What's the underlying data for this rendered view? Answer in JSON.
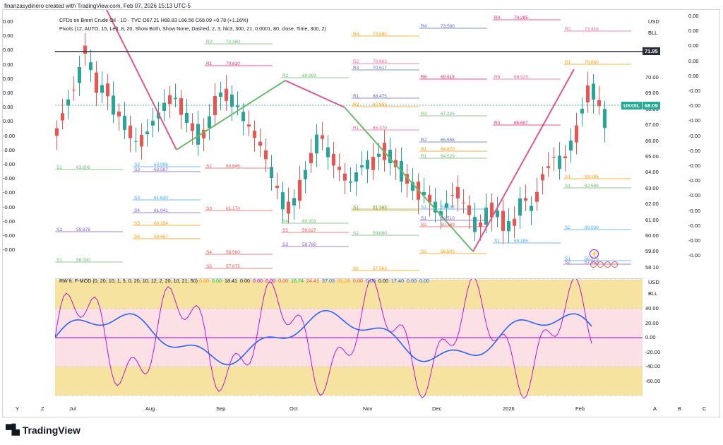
{
  "header": {
    "created_line": "finanzasydinero created with TradingView.com, Feb 07, 2026 15:13 UTC-5",
    "symbol_line": "CFDs on Brent Crude Oil · 1D · TVC  O67.21 H68.83 L66.56 C68.09 +0.78 (+1.16%)",
    "pivots_line": "Pivots (12, AUTO, 15, Left, 8, 20, Show Both, Show None, Dashed, 2, 3, hlc3, 300, 21, 0.0001, 80, close, Time, 300, 2)"
  },
  "currency": {
    "main": "USD",
    "main_unit": "BLL",
    "osc": "USD",
    "osc_unit": "BLL"
  },
  "price_badges": {
    "level": "71.95",
    "ticker": "UKOIL",
    "last": "68.09"
  },
  "colors": {
    "bull": "#26a69a",
    "bear": "#ef5350",
    "trend_pink": "#e0558f",
    "trend_green": "#66bb6a",
    "badge_dark": "#2a2e39",
    "badge_teal": "#22ab94",
    "osc_band_yellow": "#f7e3a0",
    "osc_band_pink": "#fbe0e6",
    "diamond_green": "#00c853",
    "diamond_orange": "#ff9800"
  },
  "right_axis": [
    "70.00",
    "69.00",
    "68.00",
    "67.00",
    "66.00",
    "65.00",
    "64.00",
    "63.00",
    "62.00",
    "61.00",
    "60.00",
    "59.00",
    "58.10"
  ],
  "right_axis_zero": [
    "0.00",
    "0.00",
    "0.00",
    "0.00",
    "0.00",
    "-0.00",
    "-0.00",
    "-0.00",
    "-0.00",
    "-0.00",
    "-0.00",
    "-0.00",
    "-0.00",
    "-0.00",
    "-0.00",
    "-0.00",
    "-0.00"
  ],
  "left_axis": [
    "0.00",
    "0.00",
    "0.00",
    "0.00",
    "0.00",
    "0.00",
    "0.00",
    "0.00",
    "-0.00",
    "-0.00",
    "-0.00",
    "-0.00",
    "-0.00",
    "-0.00",
    "-0.00",
    "-0.00",
    "-0.00"
  ],
  "osc_axis": [
    "40.00",
    "20.00",
    "0.00",
    "-20.00",
    "-40.00",
    "-60.00"
  ],
  "osc_legend": {
    "name": "RW ft. F-MOD (0, 20, 10, 1, 5, 0, 20, 10, 12, 2, 20, 10, 21, 50)",
    "values": [
      "0.00",
      "0.00",
      "18.41",
      "0.00",
      "0.00",
      "0.00",
      "0.00",
      "16.74",
      "24.41",
      "37.03",
      "31.26",
      "0.00",
      "0.00",
      "0.00",
      "17.40",
      "0.00",
      "0.00"
    ]
  },
  "x_axis": [
    "Y",
    "Z",
    "Jul",
    "Aug",
    "Sep",
    "Oct",
    "Nov",
    "Dec",
    "2026",
    "Feb",
    "A",
    "B",
    "C"
  ],
  "pivot_labels": [
    {
      "t": "R4",
      "v": "74.285"
    },
    {
      "t": "R2",
      "v": "73.416"
    },
    {
      "t": "R4",
      "v": "73.590"
    },
    {
      "t": "R4",
      "v": "73.080"
    },
    {
      "t": "R2",
      "v": "72.480"
    },
    {
      "t": "R1",
      "v": "70.810"
    },
    {
      "t": "R2",
      "v": "70.983"
    },
    {
      "t": "R3",
      "v": "70.517"
    },
    {
      "t": "R1",
      "v": "70.860"
    },
    {
      "t": "R2",
      "v": "69.993"
    },
    {
      "t": "R6",
      "v": "69.918"
    },
    {
      "t": "R6",
      "v": "69.925"
    },
    {
      "t": "R1",
      "v": "68.475"
    },
    {
      "t": "R2",
      "v": "67.953"
    },
    {
      "t": "R3",
      "v": "67.225"
    },
    {
      "t": "R3",
      "v": "66.607"
    },
    {
      "t": "R1",
      "v": "66.370"
    },
    {
      "t": "R2",
      "v": "65.558"
    },
    {
      "t": "R1",
      "v": "64.870"
    },
    {
      "t": "R1",
      "v": "64.529"
    },
    {
      "t": "S1",
      "v": "63.806"
    },
    {
      "t": "S2",
      "v": "63.996"
    },
    {
      "t": "S3",
      "v": "63.587"
    },
    {
      "t": "S2",
      "v": "63.846"
    },
    {
      "t": "S1",
      "v": "63.185"
    },
    {
      "t": "S1",
      "v": "62.586"
    },
    {
      "t": "S3",
      "v": "61.830"
    },
    {
      "t": "S4",
      "v": "61.041"
    },
    {
      "t": "S3",
      "v": "61.170"
    },
    {
      "t": "S1",
      "v": "61.765"
    },
    {
      "t": "S1",
      "v": "61.243"
    },
    {
      "t": "S1",
      "v": "61.198"
    },
    {
      "t": "S1",
      "v": "60.510"
    },
    {
      "t": "S2",
      "v": "60.169"
    },
    {
      "t": "S5",
      "v": "60.254"
    },
    {
      "t": "S4",
      "v": "60.393"
    },
    {
      "t": "S2",
      "v": "60.030"
    },
    {
      "t": "S2",
      "v": "59.878"
    },
    {
      "t": "S5",
      "v": "59.827"
    },
    {
      "t": "S6",
      "v": "59.467"
    },
    {
      "t": "S2",
      "v": "59.660"
    },
    {
      "t": "S1",
      "v": "59.185"
    },
    {
      "t": "S3",
      "v": "58.780"
    },
    {
      "t": "S4",
      "v": "58.500"
    },
    {
      "t": "S2",
      "v": "58.503"
    },
    {
      "t": "S1",
      "v": "58.090"
    },
    {
      "t": "S1",
      "v": "58.175"
    },
    {
      "t": "S2",
      "v": "57.918"
    },
    {
      "t": "S5",
      "v": "57.675"
    },
    {
      "t": "S2",
      "v": "57.563"
    }
  ],
  "brand": {
    "name": "TradingView"
  },
  "icons": {
    "alert": "bolt-icon"
  }
}
